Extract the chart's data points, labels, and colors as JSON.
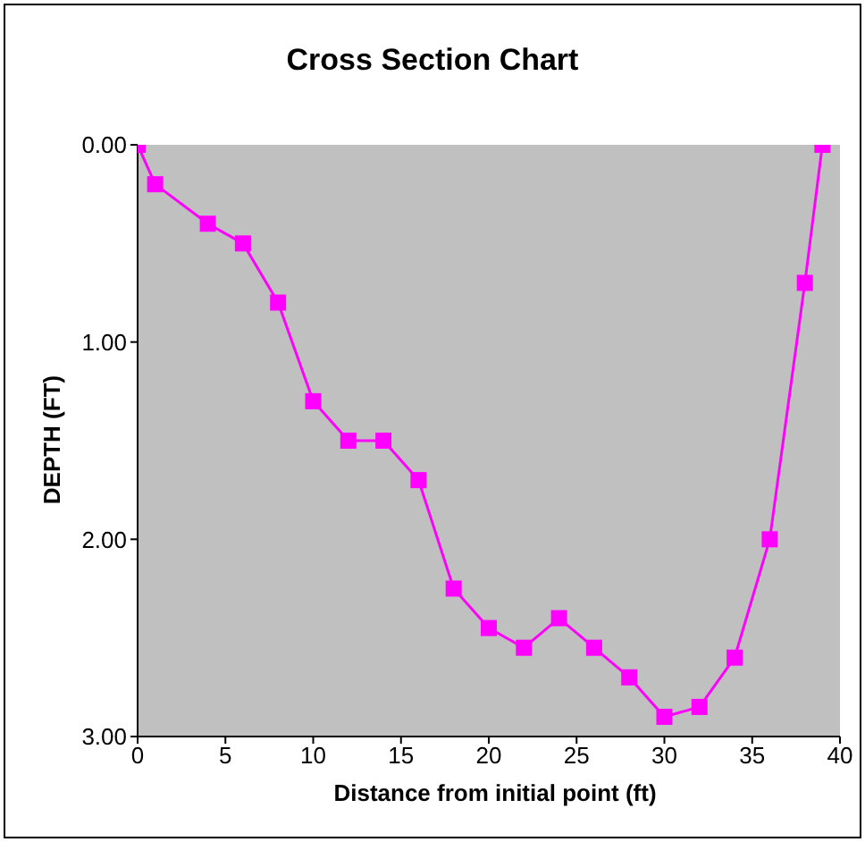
{
  "chart_data": {
    "type": "line",
    "title": "Cross Section Chart",
    "xlabel": "Distance from initial point (ft)",
    "ylabel": "DEPTH (FT)",
    "x": [
      0,
      1,
      4,
      6,
      8,
      10,
      12,
      14,
      16,
      18,
      20,
      22,
      24,
      26,
      28,
      30,
      32,
      34,
      36,
      38,
      39
    ],
    "series": [
      {
        "color": "#ff00ff",
        "values": [
          0,
          0.2,
          0.4,
          0.5,
          0.8,
          1.3,
          1.5,
          1.5,
          1.7,
          2.25,
          2.45,
          2.55,
          2.4,
          2.55,
          2.7,
          2.9,
          2.85,
          2.6,
          2.0,
          0.7,
          0
        ]
      }
    ],
    "xlim": [
      0,
      40
    ],
    "xticks": [
      0,
      5,
      10,
      15,
      20,
      25,
      30,
      35,
      40
    ],
    "ylim": [
      3,
      0
    ],
    "yticks": [
      {
        "value": 0,
        "label": "0.00"
      },
      {
        "value": 1,
        "label": "1.00"
      },
      {
        "value": 2,
        "label": "2.00"
      },
      {
        "value": 3,
        "label": "3.00"
      }
    ],
    "marker": "square",
    "line_style": "solid",
    "grid": false,
    "legend": false
  }
}
